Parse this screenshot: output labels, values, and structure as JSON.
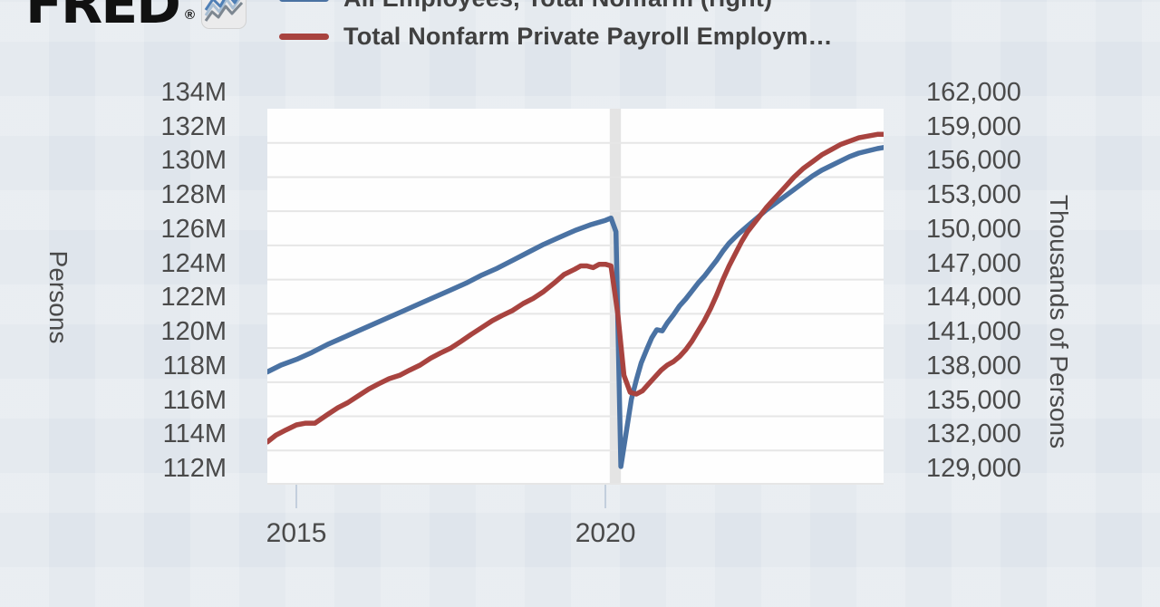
{
  "logo": {
    "text": "FRED",
    "registered": "®",
    "icon": "fred-sparkline-icon"
  },
  "legend": [
    {
      "label": "All Employees, Total Nonfarm (right)",
      "color": "#4a72a3"
    },
    {
      "label": "Total Nonfarm Private Payroll Employm…",
      "color": "#a8433f"
    }
  ],
  "colors": {
    "background": "#dfe5ec",
    "plot_background": "#fefefe",
    "gridline": "#e6e6e6",
    "recession_band": "#e4e4e4",
    "series_blue": "#4a72a3",
    "series_red": "#a8433f",
    "axis_text": "#4a4a4a"
  },
  "chart_data": {
    "type": "line",
    "title": "",
    "grid": "horizontal",
    "legend_position": "top",
    "x_axis": {
      "range": [
        2014.53,
        2024.5
      ],
      "tick_labels": [
        "2015",
        "2020"
      ],
      "tick_years": [
        2015,
        2020
      ]
    },
    "y_axis_left": {
      "title": "Persons",
      "range_millions": [
        112,
        134
      ],
      "step_millions": 2,
      "tick_labels": [
        "134M",
        "132M",
        "130M",
        "128M",
        "126M",
        "124M",
        "122M",
        "120M",
        "118M",
        "116M",
        "114M",
        "112M"
      ]
    },
    "y_axis_right": {
      "title": "Thousands of Persons",
      "range_thousands": [
        129000,
        162000
      ],
      "step_thousands": 3000,
      "tick_labels": [
        "162,000",
        "159,000",
        "156,000",
        "153,000",
        "150,000",
        "147,000",
        "144,000",
        "141,000",
        "138,000",
        "135,000",
        "132,000",
        "129,000"
      ]
    },
    "recession_band": {
      "from": 2020.07,
      "to": 2020.25
    },
    "series": [
      {
        "name": "All Employees, Total Nonfarm (right)",
        "axis": "right",
        "units": "thousands of persons",
        "color": "#4a72a3",
        "points": [
          [
            2014.53,
            138900
          ],
          [
            2014.75,
            139500
          ],
          [
            2015.0,
            140000
          ],
          [
            2015.25,
            140600
          ],
          [
            2015.5,
            141300
          ],
          [
            2015.75,
            141900
          ],
          [
            2016.0,
            142500
          ],
          [
            2016.25,
            143100
          ],
          [
            2016.5,
            143700
          ],
          [
            2016.75,
            144300
          ],
          [
            2017.0,
            144900
          ],
          [
            2017.25,
            145500
          ],
          [
            2017.5,
            146100
          ],
          [
            2017.75,
            146700
          ],
          [
            2018.0,
            147400
          ],
          [
            2018.25,
            148000
          ],
          [
            2018.5,
            148700
          ],
          [
            2018.75,
            149400
          ],
          [
            2019.0,
            150100
          ],
          [
            2019.25,
            150700
          ],
          [
            2019.5,
            151300
          ],
          [
            2019.75,
            151800
          ],
          [
            2020.0,
            152200
          ],
          [
            2020.09,
            152400
          ],
          [
            2020.17,
            151200
          ],
          [
            2020.25,
            130600
          ],
          [
            2020.33,
            133400
          ],
          [
            2020.42,
            136500
          ],
          [
            2020.5,
            138200
          ],
          [
            2020.58,
            139700
          ],
          [
            2020.67,
            140900
          ],
          [
            2020.75,
            141900
          ],
          [
            2020.83,
            142600
          ],
          [
            2020.92,
            142500
          ],
          [
            2021.0,
            143200
          ],
          [
            2021.1,
            143900
          ],
          [
            2021.2,
            144700
          ],
          [
            2021.3,
            145300
          ],
          [
            2021.4,
            146000
          ],
          [
            2021.5,
            146700
          ],
          [
            2021.6,
            147300
          ],
          [
            2021.7,
            148000
          ],
          [
            2021.8,
            148700
          ],
          [
            2021.9,
            149500
          ],
          [
            2022.0,
            150200
          ],
          [
            2022.15,
            151000
          ],
          [
            2022.3,
            151700
          ],
          [
            2022.45,
            152400
          ],
          [
            2022.6,
            153100
          ],
          [
            2022.75,
            153700
          ],
          [
            2022.9,
            154300
          ],
          [
            2023.05,
            154900
          ],
          [
            2023.2,
            155500
          ],
          [
            2023.35,
            156100
          ],
          [
            2023.5,
            156600
          ],
          [
            2023.65,
            157000
          ],
          [
            2023.8,
            157400
          ],
          [
            2023.95,
            157800
          ],
          [
            2024.1,
            158100
          ],
          [
            2024.25,
            158300
          ],
          [
            2024.4,
            158500
          ],
          [
            2024.5,
            158600
          ]
        ]
      },
      {
        "name": "Total Nonfarm Private Payroll Employment",
        "axis": "left",
        "units": "millions of persons",
        "color": "#a8433f",
        "points": [
          [
            2014.53,
            114.5
          ],
          [
            2014.67,
            114.9
          ],
          [
            2014.83,
            115.2
          ],
          [
            2015.0,
            115.5
          ],
          [
            2015.15,
            115.6
          ],
          [
            2015.3,
            115.6
          ],
          [
            2015.5,
            116.1
          ],
          [
            2015.67,
            116.5
          ],
          [
            2015.83,
            116.8
          ],
          [
            2016.0,
            117.2
          ],
          [
            2016.17,
            117.6
          ],
          [
            2016.33,
            117.9
          ],
          [
            2016.5,
            118.2
          ],
          [
            2016.67,
            118.4
          ],
          [
            2016.83,
            118.7
          ],
          [
            2017.0,
            119.0
          ],
          [
            2017.17,
            119.4
          ],
          [
            2017.33,
            119.7
          ],
          [
            2017.5,
            120.0
          ],
          [
            2017.67,
            120.4
          ],
          [
            2017.83,
            120.8
          ],
          [
            2018.0,
            121.2
          ],
          [
            2018.17,
            121.6
          ],
          [
            2018.33,
            121.9
          ],
          [
            2018.5,
            122.2
          ],
          [
            2018.67,
            122.6
          ],
          [
            2018.83,
            122.9
          ],
          [
            2019.0,
            123.3
          ],
          [
            2019.17,
            123.8
          ],
          [
            2019.33,
            124.3
          ],
          [
            2019.5,
            124.6
          ],
          [
            2019.6,
            124.8
          ],
          [
            2019.7,
            124.8
          ],
          [
            2019.8,
            124.7
          ],
          [
            2019.9,
            124.9
          ],
          [
            2020.0,
            124.9
          ],
          [
            2020.09,
            124.8
          ],
          [
            2020.2,
            122.0
          ],
          [
            2020.3,
            118.4
          ],
          [
            2020.4,
            117.4
          ],
          [
            2020.5,
            117.3
          ],
          [
            2020.6,
            117.5
          ],
          [
            2020.7,
            117.9
          ],
          [
            2020.8,
            118.3
          ],
          [
            2020.9,
            118.7
          ],
          [
            2021.0,
            119.0
          ],
          [
            2021.1,
            119.2
          ],
          [
            2021.2,
            119.5
          ],
          [
            2021.3,
            119.9
          ],
          [
            2021.4,
            120.4
          ],
          [
            2021.5,
            121.0
          ],
          [
            2021.6,
            121.6
          ],
          [
            2021.7,
            122.3
          ],
          [
            2021.8,
            123.1
          ],
          [
            2021.9,
            124.0
          ],
          [
            2022.0,
            124.8
          ],
          [
            2022.1,
            125.5
          ],
          [
            2022.2,
            126.2
          ],
          [
            2022.3,
            126.8
          ],
          [
            2022.45,
            127.5
          ],
          [
            2022.6,
            128.2
          ],
          [
            2022.75,
            128.8
          ],
          [
            2022.9,
            129.4
          ],
          [
            2023.05,
            130.0
          ],
          [
            2023.2,
            130.5
          ],
          [
            2023.35,
            130.9
          ],
          [
            2023.5,
            131.3
          ],
          [
            2023.65,
            131.6
          ],
          [
            2023.8,
            131.9
          ],
          [
            2023.95,
            132.1
          ],
          [
            2024.1,
            132.3
          ],
          [
            2024.25,
            132.4
          ],
          [
            2024.4,
            132.5
          ],
          [
            2024.5,
            132.5
          ]
        ]
      }
    ]
  }
}
